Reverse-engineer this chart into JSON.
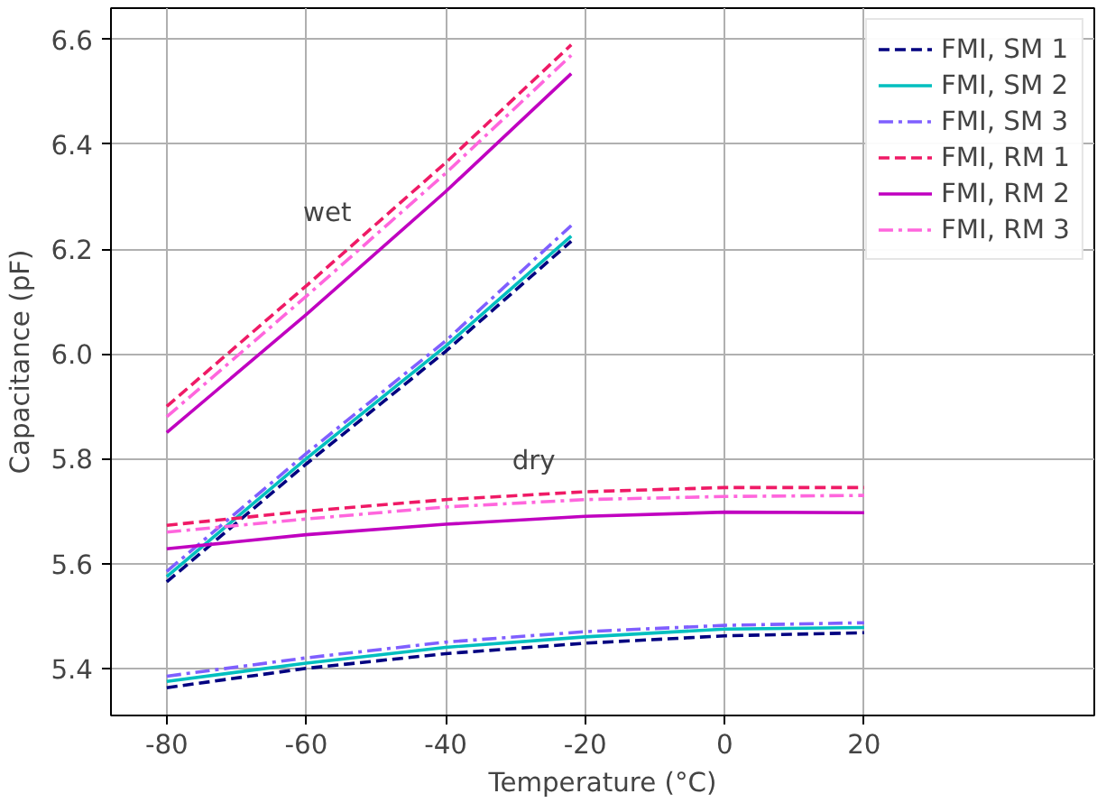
{
  "chart_data": {
    "type": "line",
    "xlabel": "Temperature (°C)",
    "ylabel": "Capacitance (pF)",
    "xlim": [
      -88,
      53
    ],
    "ylim": [
      5.31,
      6.66
    ],
    "xticks": [
      -80,
      -60,
      -40,
      -20,
      0,
      20
    ],
    "yticks": [
      {
        "value": 5.4,
        "label": "5.4"
      },
      {
        "value": 5.6,
        "label": "5.6"
      },
      {
        "value": 5.8,
        "label": "5.8"
      },
      {
        "value": 6.0,
        "label": "6.0"
      },
      {
        "value": 6.2,
        "label": "6.2"
      },
      {
        "value": 6.4,
        "label": "6.4"
      },
      {
        "value": 6.6,
        "label": "6.6"
      }
    ],
    "grid": true,
    "legend": "top right",
    "annotations": [
      "wet",
      "dry"
    ],
    "series": [
      {
        "name": "FMI, SM 1",
        "color": "#000080",
        "line_style": "dashed",
        "x": [
          -80,
          -60,
          -40,
          -22
        ],
        "values": [
          5.565,
          5.79,
          6.005,
          6.215
        ]
      },
      {
        "name": "FMI, SM 2",
        "color": "#00bfbf",
        "line_style": "solid",
        "x": [
          -80,
          -60,
          -40,
          -22
        ],
        "values": [
          5.575,
          5.8,
          6.015,
          6.225
        ]
      },
      {
        "name": "FMI, SM 3",
        "color": "#7f5fff",
        "line_style": "dashdot",
        "x": [
          -80,
          -60,
          -40,
          -22
        ],
        "values": [
          5.585,
          5.81,
          6.025,
          6.245
        ]
      },
      {
        "name": "FMI, RM 1",
        "color": "#ef1a66",
        "line_style": "dashed",
        "x": [
          -80,
          -60,
          -40,
          -22
        ],
        "values": [
          5.9,
          6.13,
          6.365,
          6.59
        ]
      },
      {
        "name": "FMI, RM 2",
        "color": "#c000c0",
        "line_style": "solid",
        "x": [
          -80,
          -60,
          -40,
          -22
        ],
        "values": [
          5.85,
          6.075,
          6.31,
          6.535
        ]
      },
      {
        "name": "FMI, RM 3",
        "color": "#ff66dd",
        "line_style": "dashdot",
        "x": [
          -80,
          -60,
          -40,
          -22
        ],
        "values": [
          5.88,
          6.11,
          6.345,
          6.57
        ]
      },
      {
        "color": "#000080",
        "line_style": "dashed",
        "x": [
          -80,
          -60,
          -40,
          -20,
          0,
          20
        ],
        "values": [
          5.363,
          5.4,
          5.428,
          5.448,
          5.462,
          5.468
        ]
      },
      {
        "color": "#00bfbf",
        "line_style": "solid",
        "x": [
          -80,
          -60,
          -40,
          -20,
          0,
          20
        ],
        "values": [
          5.375,
          5.41,
          5.44,
          5.46,
          5.475,
          5.478
        ]
      },
      {
        "color": "#7f5fff",
        "line_style": "dashdot",
        "x": [
          -80,
          -60,
          -40,
          -20,
          0,
          20
        ],
        "values": [
          5.385,
          5.42,
          5.45,
          5.47,
          5.482,
          5.487
        ]
      },
      {
        "color": "#ef1a66",
        "line_style": "dashed",
        "x": [
          -80,
          -60,
          -40,
          -20,
          0,
          20
        ],
        "values": [
          5.673,
          5.7,
          5.722,
          5.737,
          5.745,
          5.745
        ]
      },
      {
        "color": "#c000c0",
        "line_style": "solid",
        "x": [
          -80,
          -60,
          -40,
          -20,
          0,
          20
        ],
        "values": [
          5.628,
          5.655,
          5.675,
          5.69,
          5.698,
          5.697
        ]
      },
      {
        "color": "#ff66dd",
        "line_style": "dashdot",
        "x": [
          -80,
          -60,
          -40,
          -20,
          0,
          20
        ],
        "values": [
          5.66,
          5.685,
          5.708,
          5.722,
          5.728,
          5.73
        ]
      }
    ]
  }
}
